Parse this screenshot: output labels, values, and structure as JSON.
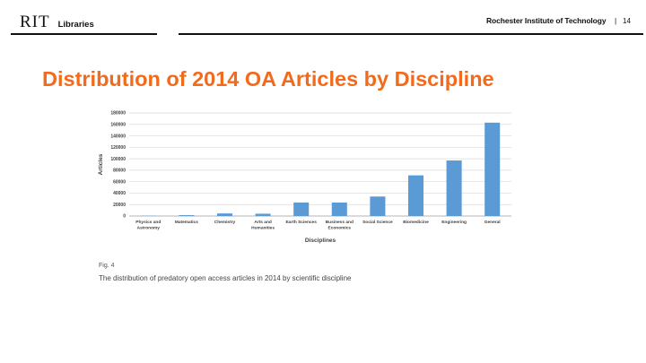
{
  "header": {
    "logo_primary": "RIT",
    "logo_secondary": "Libraries",
    "institution": "Rochester Institute of Technology",
    "separator": "|",
    "page_number": "14"
  },
  "slide": {
    "title": "Distribution of 2014 OA Articles by Discipline",
    "title_color": "#f26a1b"
  },
  "figure": {
    "number": "Fig. 4",
    "caption": "The distribution of predatory open access articles in 2014 by scientific discipline"
  },
  "chart_data": {
    "type": "bar",
    "title": "",
    "xlabel": "Disciplines",
    "ylabel": "Articles",
    "ylim": [
      0,
      180000
    ],
    "yticks": [
      "180000",
      "160000",
      "140000",
      "120000",
      "100000",
      "80000",
      "60000",
      "40000",
      "20000",
      "0"
    ],
    "grid": true,
    "bar_color": "#5b9bd5",
    "categories": [
      [
        "Physics and",
        "Astronomy"
      ],
      [
        "Matematics"
      ],
      [
        "Chemistry"
      ],
      [
        "Arts and",
        "Humanities"
      ],
      [
        "Earth Sciences"
      ],
      [
        "Business and",
        "Economics"
      ],
      [
        "Social Science"
      ],
      [
        "Biomedicine"
      ],
      [
        "Engineering"
      ],
      [
        "General"
      ]
    ],
    "values": [
      500,
      1500,
      4500,
      4000,
      23500,
      23500,
      34000,
      71000,
      97000,
      163000
    ]
  }
}
